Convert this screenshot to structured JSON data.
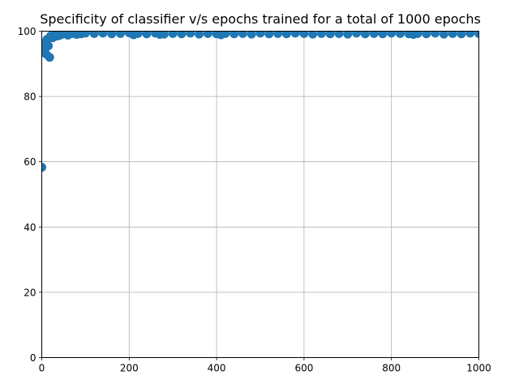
{
  "chart_data": {
    "type": "scatter",
    "title": "Specificity of classifier v/s epochs trained for a total of 1000 epochs",
    "xlabel": "",
    "ylabel": "",
    "xlim": [
      0,
      1000
    ],
    "ylim": [
      0,
      100
    ],
    "xticks": [
      0,
      200,
      400,
      600,
      800,
      1000
    ],
    "yticks": [
      0,
      20,
      40,
      60,
      80,
      100
    ],
    "xtick_labels": [
      "0",
      "200",
      "400",
      "600",
      "800",
      "1000"
    ],
    "ytick_labels": [
      "0",
      "20",
      "40",
      "60",
      "80",
      "100"
    ],
    "grid": true,
    "legend": "none",
    "color": "#1f77b4",
    "series": [
      {
        "x": [
          0,
          5,
          8,
          10,
          12,
          15,
          18,
          20,
          25,
          30,
          35,
          40,
          45,
          50,
          60,
          70,
          80,
          90,
          100,
          120,
          140,
          160,
          180,
          200,
          210,
          220,
          240,
          260,
          270,
          280,
          300,
          320,
          340,
          360,
          380,
          400,
          410,
          420,
          440,
          460,
          480,
          500,
          520,
          540,
          560,
          580,
          600,
          620,
          640,
          660,
          680,
          700,
          720,
          740,
          760,
          780,
          800,
          820,
          840,
          850,
          860,
          880,
          900,
          920,
          940,
          960,
          980,
          1000
        ],
        "values": [
          58.3,
          94.5,
          96.5,
          93,
          97.5,
          95.5,
          92,
          98.5,
          98,
          99,
          98.5,
          98.7,
          99,
          99.2,
          98.8,
          99.3,
          99,
          99.2,
          99.4,
          99.3,
          99.4,
          99.2,
          99.3,
          99.5,
          98.9,
          99.3,
          99.2,
          99.4,
          99,
          99.1,
          99.3,
          99.2,
          99.4,
          99.1,
          99.3,
          99.2,
          98.9,
          99.3,
          99.2,
          99.3,
          99.1,
          99.4,
          99.2,
          99.3,
          99.2,
          99.4,
          99.3,
          99.1,
          99.3,
          99.2,
          99.3,
          99.1,
          99.4,
          99.2,
          99.3,
          99.2,
          99.4,
          99.3,
          99.2,
          99,
          99.3,
          99.2,
          99.4,
          99.1,
          99.3,
          99.2,
          99.4,
          99.3
        ]
      }
    ]
  }
}
